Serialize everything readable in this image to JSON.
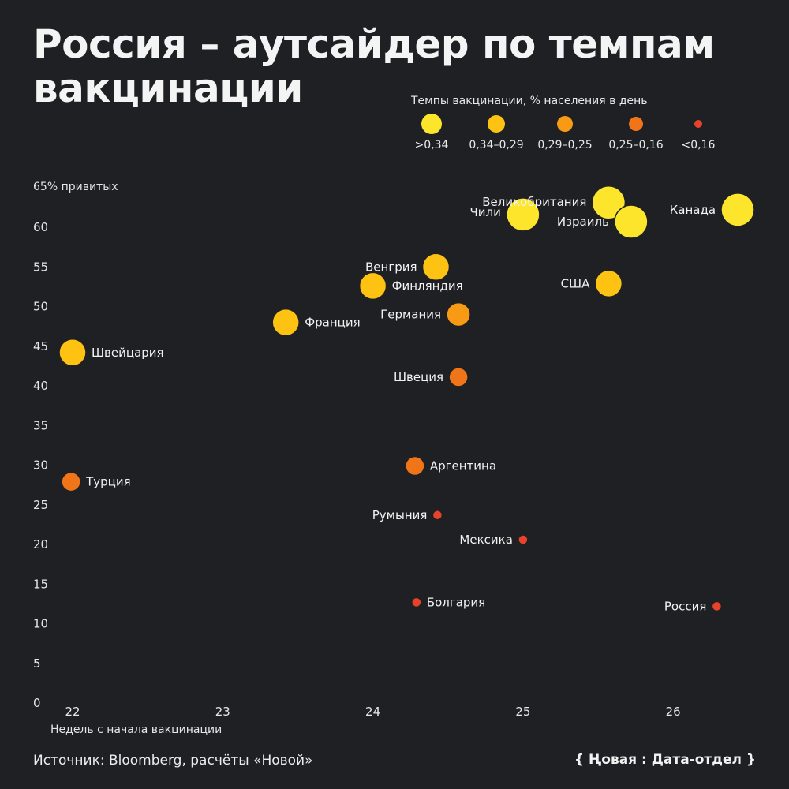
{
  "title": "Россия – аутсайдер по темпам вакцинации",
  "legend": {
    "title": "Темпы вакцинации, % населения в день",
    "items": [
      {
        "label": ">0,34",
        "color": "#fde52b",
        "size": 5
      },
      {
        "label": "0,34–0,29",
        "color": "#fdc212",
        "size": 4
      },
      {
        "label": "0,29–0,25",
        "color": "#f99a14",
        "size": 3
      },
      {
        "label": "0,25–0,16",
        "color": "#f07518",
        "size": 2
      },
      {
        "label": "<0,16",
        "color": "#e8432a",
        "size": 1
      }
    ]
  },
  "chart_data": {
    "type": "scatter",
    "title": "Россия – аутсайдер по темпам вакцинации",
    "xlabel": "Недель с начала вакцинации",
    "ylabel": "65% привитых",
    "xlim": [
      21.8,
      26.6
    ],
    "ylim": [
      0,
      65
    ],
    "x_ticks": [
      "22",
      "23",
      "24",
      "25",
      "26"
    ],
    "y_ticks": [
      "0",
      "5",
      "10",
      "15",
      "20",
      "25",
      "30",
      "35",
      "40",
      "45",
      "50",
      "55",
      "60"
    ],
    "grid": false,
    "legend_position": "top-right",
    "points": [
      {
        "name": "Швейцария",
        "x": 22.0,
        "y": 44.1,
        "rate_class": 1,
        "label_side": "right"
      },
      {
        "name": "Турция",
        "x": 21.99,
        "y": 27.8,
        "rate_class": 3,
        "label_side": "right"
      },
      {
        "name": "Франция",
        "x": 23.42,
        "y": 47.9,
        "rate_class": 1,
        "label_side": "right"
      },
      {
        "name": "Финляндия",
        "x": 24.0,
        "y": 52.5,
        "rate_class": 1,
        "label_side": "right"
      },
      {
        "name": "Венгрия",
        "x": 24.42,
        "y": 54.9,
        "rate_class": 1,
        "label_side": "left"
      },
      {
        "name": "Германия",
        "x": 24.57,
        "y": 48.9,
        "rate_class": 2,
        "label_side": "left"
      },
      {
        "name": "Швеция",
        "x": 24.57,
        "y": 41.0,
        "rate_class": 3,
        "label_side": "left"
      },
      {
        "name": "Аргентина",
        "x": 24.28,
        "y": 29.8,
        "rate_class": 3,
        "label_side": "right"
      },
      {
        "name": "Румыния",
        "x": 24.43,
        "y": 23.6,
        "rate_class": 4,
        "label_side": "left"
      },
      {
        "name": "Мексика",
        "x": 25.0,
        "y": 20.5,
        "rate_class": 4,
        "label_side": "left"
      },
      {
        "name": "Болгария",
        "x": 24.29,
        "y": 12.6,
        "rate_class": 4,
        "label_side": "right"
      },
      {
        "name": "Россия",
        "x": 26.29,
        "y": 12.1,
        "rate_class": 4,
        "label_side": "left"
      },
      {
        "name": "Чили",
        "x": 25.0,
        "y": 61.5,
        "rate_class": 0,
        "label_side": "left"
      },
      {
        "name": "Великобритания",
        "x": 25.57,
        "y": 63.0,
        "rate_class": 0,
        "label_side": "left"
      },
      {
        "name": "Израиль",
        "x": 25.72,
        "y": 60.6,
        "rate_class": 0,
        "label_side": "left"
      },
      {
        "name": "Канада",
        "x": 26.43,
        "y": 62.1,
        "rate_class": 0,
        "label_side": "left"
      },
      {
        "name": "США",
        "x": 25.57,
        "y": 52.8,
        "rate_class": 1,
        "label_side": "left"
      }
    ]
  },
  "footer": {
    "source": "Источник: Bloomberg, расчёты «Новой»",
    "logo": "{ Ңовая : Дата-отдел }"
  }
}
